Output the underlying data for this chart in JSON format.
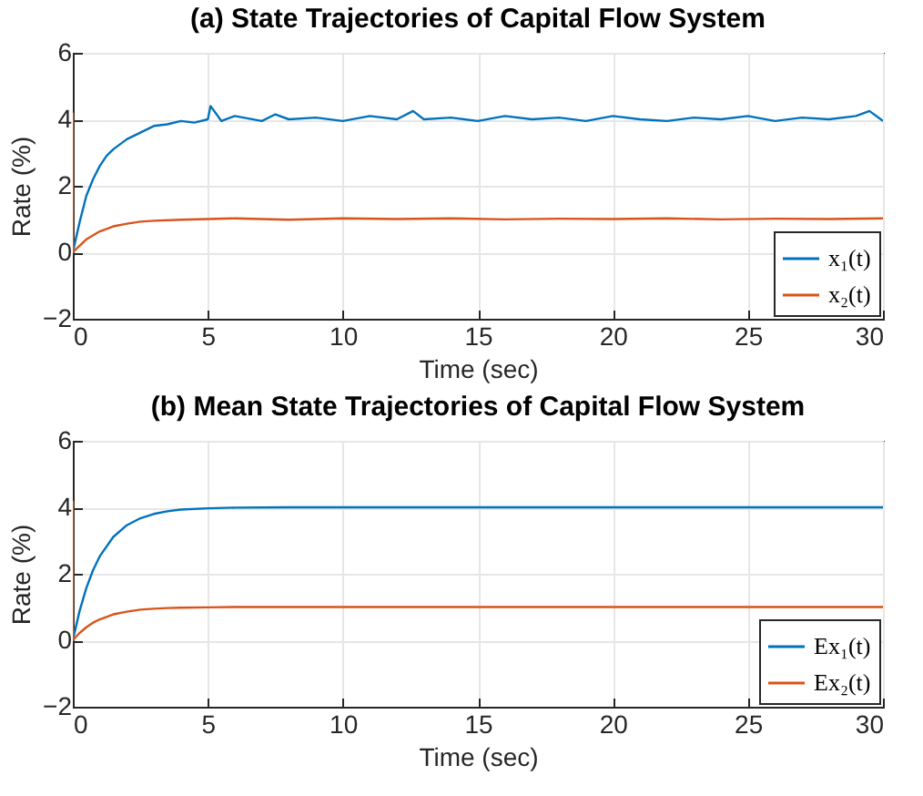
{
  "chart_data": [
    {
      "type": "line",
      "title": "(a) State Trajectories of Capital Flow System",
      "xlabel": "Time (sec)",
      "ylabel": "Rate (%)",
      "x": [
        0,
        0.25,
        0.5,
        0.75,
        1,
        1.25,
        1.5,
        2,
        2.5,
        3,
        3.5,
        4,
        4.5,
        5,
        5.1,
        5.5,
        6,
        7,
        7.5,
        8,
        9,
        10,
        11,
        12,
        12.6,
        13,
        14,
        15,
        16,
        17,
        18,
        19,
        20,
        21,
        22,
        23,
        24,
        25,
        26,
        27,
        28,
        29,
        29.5,
        30
      ],
      "series": [
        {
          "name": "x₁(t)",
          "color": "#0072bd",
          "values": [
            0,
            0.9,
            1.7,
            2.2,
            2.6,
            2.9,
            3.1,
            3.4,
            3.6,
            3.8,
            3.85,
            3.95,
            3.9,
            4.0,
            4.4,
            3.95,
            4.1,
            3.95,
            4.15,
            4.0,
            4.05,
            3.95,
            4.1,
            4.0,
            4.25,
            4.0,
            4.05,
            3.95,
            4.1,
            4.0,
            4.05,
            3.95,
            4.1,
            4.0,
            3.95,
            4.05,
            4.0,
            4.1,
            3.95,
            4.05,
            4.0,
            4.1,
            4.25,
            3.95
          ]
        },
        {
          "name": "x₂(t)",
          "color": "#d95319",
          "x": [
            0,
            0,
            0.5,
            1,
            1.5,
            2,
            2.5,
            3,
            4,
            5,
            6,
            8,
            10,
            12,
            14,
            16,
            18,
            20,
            22,
            24,
            26,
            28,
            30
          ],
          "values": [
            4.2,
            0,
            0.39,
            0.63,
            0.78,
            0.86,
            0.92,
            0.95,
            0.98,
            1.0,
            1.02,
            0.98,
            1.02,
            1.0,
            1.02,
            0.99,
            1.01,
            1.0,
            1.02,
            0.99,
            1.01,
            1.0,
            1.02
          ]
        }
      ],
      "xlim": [
        0,
        30
      ],
      "xticks": [
        0,
        5,
        10,
        15,
        20,
        25,
        30
      ],
      "ylim": [
        -2,
        6
      ],
      "yticks": [
        -2,
        0,
        2,
        4,
        6
      ],
      "grid": true,
      "legend": "bottom right",
      "line_style": "solid"
    },
    {
      "type": "line",
      "title": "(b) Mean State Trajectories of Capital Flow System",
      "xlabel": "Time (sec)",
      "ylabel": "Rate (%)",
      "x": [
        0,
        0.25,
        0.5,
        0.75,
        1,
        1.5,
        2,
        2.5,
        3,
        3.5,
        4,
        5,
        6,
        8,
        10,
        15,
        20,
        25,
        30
      ],
      "series": [
        {
          "name": "Ex₁(t)",
          "color": "#0072bd",
          "values": [
            0,
            0.88,
            1.57,
            2.11,
            2.53,
            3.11,
            3.46,
            3.67,
            3.8,
            3.88,
            3.93,
            3.97,
            3.99,
            4,
            4,
            4,
            4,
            4,
            4
          ]
        },
        {
          "name": "Ex₂(t)",
          "color": "#d95319",
          "x": [
            0,
            0,
            0.25,
            0.5,
            0.75,
            1,
            1.5,
            2,
            2.5,
            3,
            3.5,
            4,
            5,
            6,
            8,
            10,
            15,
            20,
            25,
            30
          ],
          "values": [
            4.2,
            0,
            0.22,
            0.39,
            0.53,
            0.63,
            0.78,
            0.86,
            0.92,
            0.95,
            0.97,
            0.98,
            0.99,
            1,
            1,
            1,
            1,
            1,
            1,
            1
          ]
        }
      ],
      "xlim": [
        0,
        30
      ],
      "xticks": [
        0,
        5,
        10,
        15,
        20,
        25,
        30
      ],
      "ylim": [
        -2,
        6
      ],
      "yticks": [
        -2,
        0,
        2,
        4,
        6
      ],
      "grid": true,
      "legend": "bottom right",
      "line_style": "solid"
    }
  ]
}
